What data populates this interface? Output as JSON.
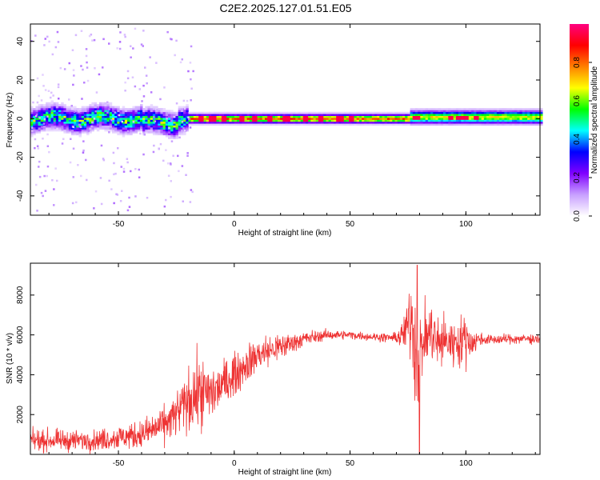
{
  "title": "C2E2.2025.127.01.51.E05",
  "chart_data": [
    {
      "type": "heatmap",
      "xlabel": "Height of straight line (km)",
      "ylabel": "Frequency (Hz)",
      "xlim": [
        -88,
        132
      ],
      "ylim": [
        -50,
        49
      ],
      "x_ticks": [
        -50,
        0,
        50,
        100
      ],
      "y_ticks": [
        -40,
        -20,
        0,
        20,
        40
      ],
      "colorbar": {
        "label": "Normalized spectral amplitude",
        "range": [
          0.0,
          1.0
        ],
        "ticks": [
          "0.0",
          "0.2",
          "0.4",
          "0.6",
          "0.8"
        ],
        "colormap": [
          "#ffffff",
          "#c8a0ff",
          "#8000ff",
          "#0000ff",
          "#00ffff",
          "#00ff00",
          "#ffff00",
          "#ff8000",
          "#ff0000",
          "#ff0080"
        ]
      },
      "ridge": {
        "description_values": "energy concentrated near 0 Hz; broad (about -5 to 5 Hz) and noisy for heights below about -20 km, narrow from -20 km to 132 km",
        "segments": [
          {
            "x_from": -88,
            "x_to": -20,
            "half_width_hz": 5,
            "peak_level": 0.5
          },
          {
            "x_from": -20,
            "x_to": 75,
            "half_width_hz": 2,
            "peak_level": 0.85
          },
          {
            "x_from": 75,
            "x_to": 132,
            "half_width_hz": 3,
            "peak_level": 0.7
          }
        ],
        "hot_spots_x": [
          -15,
          -10,
          -5,
          3,
          8,
          15,
          22,
          30,
          37,
          45,
          50,
          78,
          93,
          96,
          99,
          104
        ]
      }
    },
    {
      "type": "line",
      "xlabel": "Height of straight line (km)",
      "ylabel": "SNR (10 * v/v)",
      "xlim": [
        -88,
        132
      ],
      "ylim": [
        0,
        9600
      ],
      "x_ticks": [
        -50,
        0,
        50,
        100
      ],
      "y_ticks": [
        2000,
        4000,
        6000,
        8000
      ],
      "color": "#ee3333",
      "envelope": {
        "x": [
          -88,
          -60,
          -40,
          -30,
          -25,
          -20,
          -15,
          -12,
          -8,
          -5,
          0,
          5,
          10,
          15,
          20,
          25,
          30,
          35,
          40,
          50,
          60,
          70,
          73,
          75,
          77,
          78,
          79,
          80,
          82,
          85,
          88,
          90,
          95,
          100,
          102,
          104,
          105,
          110,
          120,
          132
        ],
        "mean": [
          700,
          700,
          1000,
          1500,
          2000,
          2700,
          3100,
          3000,
          3200,
          3500,
          4000,
          4500,
          5000,
          5200,
          5400,
          5600,
          5800,
          5900,
          6000,
          6000,
          5900,
          5850,
          6000,
          6500,
          7000,
          5500,
          4500,
          5000,
          5800,
          6200,
          5500,
          5700,
          5600,
          5800,
          5700,
          5600,
          5800,
          5750,
          5800,
          5800
        ],
        "spread": [
          500,
          500,
          700,
          900,
          1100,
          1500,
          1800,
          1500,
          1400,
          1200,
          1000,
          900,
          900,
          800,
          700,
          500,
          400,
          300,
          250,
          200,
          200,
          250,
          800,
          1500,
          2500,
          3500,
          2500,
          1800,
          1500,
          1500,
          1500,
          1200,
          1200,
          1200,
          1000,
          700,
          300,
          250,
          250,
          250
        ]
      },
      "max_point": {
        "x": 79,
        "y": 9500
      },
      "min_point": {
        "x": 80,
        "y": 0
      }
    }
  ]
}
